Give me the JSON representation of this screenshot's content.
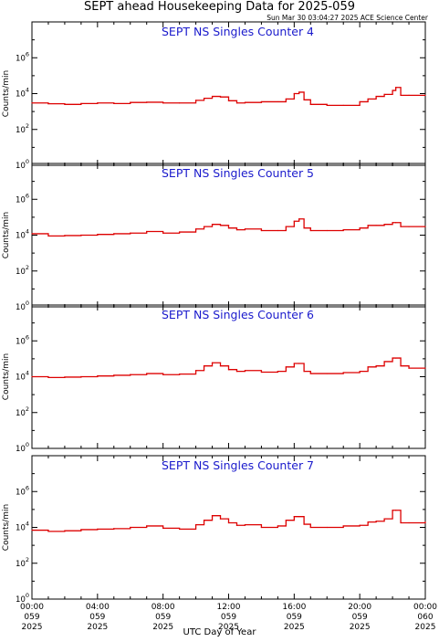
{
  "header": {
    "title": "SEPT ahead Housekeeping Data for 2025-059",
    "timestamp": "Sun Mar 30 03:04:27 2025 ACE Science Center"
  },
  "x_axis_title": "UTC Day of Year",
  "colors": {
    "series": "#dd0000",
    "panel_title": "#1a1acc",
    "axis": "#000000"
  },
  "chart_data": [
    {
      "type": "line",
      "title": "SEPT NS Singles Counter 4",
      "ylabel": "Counts/min",
      "yscale": "log",
      "ylim": [
        1,
        100000000
      ],
      "xlim": [
        0,
        24
      ],
      "y_tick_labels": [
        "10^0",
        "10^2",
        "10^4",
        "10^6"
      ],
      "x_tick_labels": [
        [
          "00:00",
          "059",
          "2025"
        ],
        [
          "04:00",
          "059",
          "2025"
        ],
        [
          "08:00",
          "059",
          "2025"
        ],
        [
          "12:00",
          "059",
          "2025"
        ],
        [
          "16:00",
          "059",
          "2025"
        ],
        [
          "20:00",
          "059",
          "2025"
        ],
        [
          "00:00",
          "060",
          "2025"
        ]
      ],
      "series": [
        {
          "x": [
            0,
            1,
            2,
            3,
            4,
            5,
            6,
            7,
            8,
            9,
            10,
            10.5,
            11,
            11.5,
            12,
            12.5,
            13,
            14,
            15,
            15.5,
            16,
            16.3,
            16.6,
            17,
            18,
            19,
            20,
            20.5,
            21,
            21.5,
            22,
            22.2,
            22.5,
            23,
            24
          ],
          "values": [
            3000,
            2700,
            2500,
            2800,
            3000,
            2800,
            3200,
            3300,
            3000,
            3000,
            4200,
            5500,
            7000,
            6500,
            4000,
            3000,
            3200,
            3500,
            3500,
            5000,
            10000,
            12000,
            4500,
            2500,
            2200,
            2200,
            3500,
            5000,
            7000,
            9000,
            15000,
            22000,
            8000,
            8000,
            8000
          ]
        }
      ]
    },
    {
      "type": "line",
      "title": "SEPT NS Singles Counter 5",
      "ylabel": "Counts/min",
      "yscale": "log",
      "ylim": [
        1,
        100000000
      ],
      "xlim": [
        0,
        24
      ],
      "y_tick_labels": [
        "10^0",
        "10^2",
        "10^4",
        "10^6"
      ],
      "x_tick_labels": [
        [
          "00:00",
          "059",
          "2025"
        ],
        [
          "04:00",
          "059",
          "2025"
        ],
        [
          "08:00",
          "059",
          "2025"
        ],
        [
          "12:00",
          "059",
          "2025"
        ],
        [
          "16:00",
          "059",
          "2025"
        ],
        [
          "20:00",
          "059",
          "2025"
        ],
        [
          "00:00",
          "060",
          "2025"
        ]
      ],
      "series": [
        {
          "x": [
            0,
            1,
            2,
            3,
            4,
            5,
            6,
            7,
            8,
            9,
            10,
            10.5,
            11,
            11.5,
            12,
            12.5,
            13,
            14,
            15,
            15.5,
            16,
            16.3,
            16.6,
            17,
            18,
            19,
            20,
            20.5,
            21,
            21.5,
            22,
            22.2,
            22.5,
            23,
            24
          ],
          "values": [
            12000,
            9000,
            9500,
            10000,
            11000,
            12000,
            13000,
            16000,
            13000,
            15000,
            22000,
            30000,
            40000,
            35000,
            25000,
            20000,
            22000,
            18000,
            18000,
            30000,
            60000,
            80000,
            25000,
            18000,
            18000,
            20000,
            25000,
            35000,
            35000,
            40000,
            50000,
            50000,
            30000,
            30000,
            30000
          ]
        }
      ]
    },
    {
      "type": "line",
      "title": "SEPT NS Singles Counter 6",
      "ylabel": "Counts/min",
      "yscale": "log",
      "ylim": [
        1,
        100000000
      ],
      "xlim": [
        0,
        24
      ],
      "y_tick_labels": [
        "10^0",
        "10^2",
        "10^4",
        "10^6"
      ],
      "x_tick_labels": [
        [
          "00:00",
          "059",
          "2025"
        ],
        [
          "04:00",
          "059",
          "2025"
        ],
        [
          "08:00",
          "059",
          "2025"
        ],
        [
          "12:00",
          "059",
          "2025"
        ],
        [
          "16:00",
          "059",
          "2025"
        ],
        [
          "20:00",
          "059",
          "2025"
        ],
        [
          "00:00",
          "060",
          "2025"
        ]
      ],
      "series": [
        {
          "x": [
            0,
            1,
            2,
            3,
            4,
            5,
            6,
            7,
            8,
            9,
            10,
            10.5,
            11,
            11.5,
            12,
            12.5,
            13,
            14,
            15,
            15.5,
            16,
            16.3,
            16.6,
            17,
            18,
            19,
            20,
            20.5,
            21,
            21.5,
            22,
            22.2,
            22.5,
            23,
            24
          ],
          "values": [
            10000,
            9000,
            9500,
            10000,
            11000,
            12000,
            13000,
            15000,
            13000,
            14000,
            22000,
            40000,
            60000,
            40000,
            25000,
            20000,
            22000,
            18000,
            20000,
            35000,
            55000,
            55000,
            20000,
            15000,
            15000,
            17000,
            20000,
            35000,
            40000,
            70000,
            110000,
            110000,
            40000,
            30000,
            30000
          ]
        }
      ]
    },
    {
      "type": "line",
      "title": "SEPT NS Singles Counter 7",
      "ylabel": "Counts/min",
      "yscale": "log",
      "ylim": [
        1,
        100000000
      ],
      "xlim": [
        0,
        24
      ],
      "y_tick_labels": [
        "10^0",
        "10^2",
        "10^4",
        "10^6"
      ],
      "x_tick_labels": [
        [
          "00:00",
          "059",
          "2025"
        ],
        [
          "04:00",
          "059",
          "2025"
        ],
        [
          "08:00",
          "059",
          "2025"
        ],
        [
          "12:00",
          "059",
          "2025"
        ],
        [
          "16:00",
          "059",
          "2025"
        ],
        [
          "20:00",
          "059",
          "2025"
        ],
        [
          "00:00",
          "060",
          "2025"
        ]
      ],
      "series": [
        {
          "x": [
            0,
            1,
            2,
            3,
            4,
            5,
            6,
            7,
            8,
            9,
            10,
            10.5,
            11,
            11.5,
            12,
            12.5,
            13,
            14,
            15,
            15.5,
            16,
            16.3,
            16.6,
            17,
            18,
            19,
            20,
            20.5,
            21,
            21.5,
            22,
            22.2,
            22.5,
            23,
            24
          ],
          "values": [
            7000,
            6000,
            6500,
            7500,
            8000,
            8500,
            10000,
            12000,
            9000,
            8000,
            14000,
            25000,
            45000,
            30000,
            18000,
            13000,
            14000,
            10000,
            12000,
            25000,
            40000,
            40000,
            15000,
            10000,
            10000,
            12000,
            13000,
            20000,
            22000,
            30000,
            90000,
            90000,
            18000,
            18000,
            20000
          ]
        }
      ]
    }
  ]
}
